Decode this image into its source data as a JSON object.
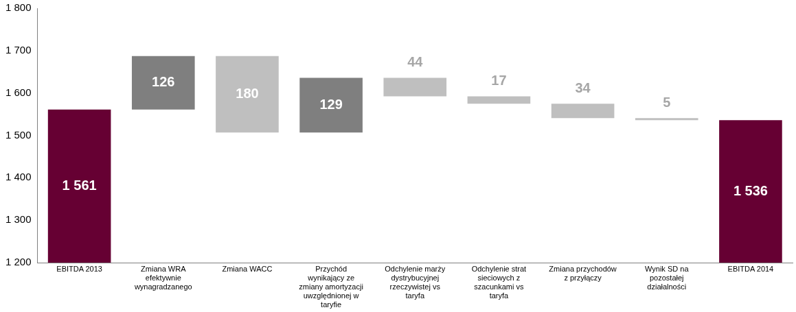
{
  "chart_data": {
    "type": "bar",
    "categories": [
      "EBITDA 2013",
      "Zmiana WRA efektywnie wynagradzanego",
      "Zmiana WACC",
      "Przychód wynikający ze zmiany amortyzacji uwzględnionej w taryfie",
      "Odchylenie marży dystrybucyjnej rzeczywistej vs taryfa",
      "Odchylenie strat sieciowych z szacunkami vs taryfa",
      "Zmiana przychodów z przyłączy",
      "Wynik SD na pozostałej działalności",
      "EBITDA 2014"
    ],
    "values": [
      1561,
      126,
      -180,
      129,
      -44,
      -17,
      -34,
      -5,
      1536
    ],
    "base": [
      null,
      1561,
      1687,
      1507,
      1636,
      1592,
      1575,
      1541,
      null
    ],
    "value_labels": [
      "1 561",
      "126",
      "180",
      "129",
      "44",
      "17",
      "34",
      "5",
      "1 536"
    ],
    "colors": [
      "#660033",
      "#7f7f7f",
      "#bfbfbf",
      "#7f7f7f",
      "#bfbfbf",
      "#bfbfbf",
      "#bfbfbf",
      "#bfbfbf",
      "#660033"
    ],
    "ylim": [
      1200,
      1800
    ],
    "yticks": [
      {
        "value": 1200,
        "label": "1 200"
      },
      {
        "value": 1300,
        "label": "1 300"
      },
      {
        "value": 1400,
        "label": "1 400"
      },
      {
        "value": 1500,
        "label": "1 500"
      },
      {
        "value": 1600,
        "label": "1 600"
      },
      {
        "value": 1700,
        "label": "1 700"
      },
      {
        "value": 1800,
        "label": "1 800"
      }
    ],
    "grid": false,
    "legend": false
  }
}
